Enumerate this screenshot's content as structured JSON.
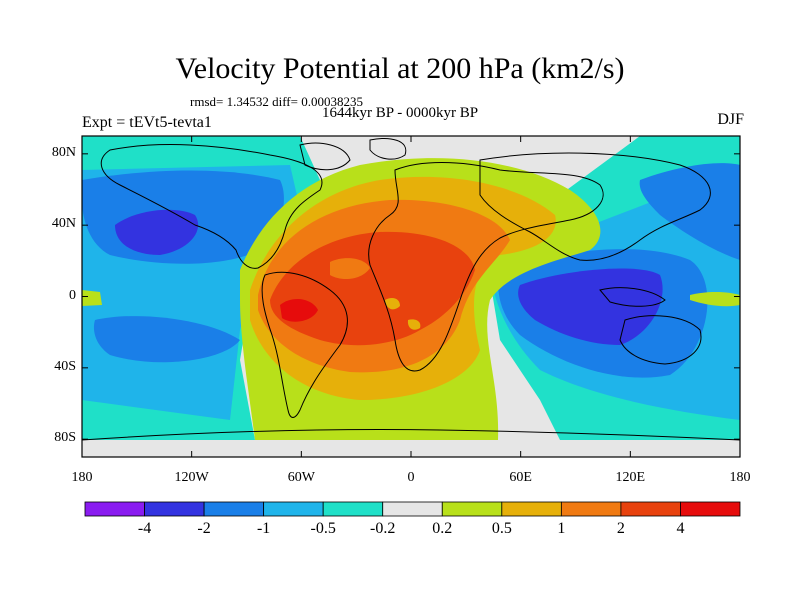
{
  "header": {
    "title": "Velocity Potential at 200 hPa (km2/s)",
    "stats": "rmsd= 1.34532 diff= 0.00038235",
    "period": "1644kyr BP - 0000kyr BP",
    "experiment": "Expt = tEVt5-tevta1",
    "season": "DJF"
  },
  "axes": {
    "lat_labels": [
      "80N",
      "40N",
      "0",
      "40S",
      "80S"
    ],
    "lat_values": [
      80,
      40,
      0,
      -40,
      -80
    ],
    "lon_labels": [
      "180",
      "120W",
      "60W",
      "0",
      "60E",
      "120E",
      "180"
    ],
    "lon_values": [
      -180,
      -120,
      -60,
      0,
      60,
      120,
      180
    ]
  },
  "colorbar": {
    "labels": [
      "-4",
      "-2",
      "-1",
      "-0.5",
      "-0.2",
      "0.2",
      "0.5",
      "1",
      "2",
      "4"
    ],
    "bins": [
      "<-4",
      "-4..-2",
      "-2..-1",
      "-1..-0.5",
      "-0.5..-0.2",
      "-0.2..0.2",
      "0.2..0.5",
      "0.5..1",
      "1..2",
      "2..4",
      ">4"
    ],
    "colors": [
      "#8a1cf0",
      "#3333e0",
      "#1a7fe8",
      "#1fb4ea",
      "#1fe0c8",
      "#e6e6e6",
      "#b8e01a",
      "#e6b00a",
      "#f07a12",
      "#e8420e",
      "#e60c0c"
    ]
  },
  "map_fields": {
    "note_free": "",
    "regions": [
      {
        "level": "-0.5..-0.2",
        "color": "#1fe0c8"
      },
      {
        "level": "-1..-0.5",
        "color": "#1fb4ea"
      },
      {
        "level": "-2..-1",
        "color": "#1a7fe8"
      },
      {
        "level": "-4..-2",
        "color": "#3333e0"
      },
      {
        "level": "0.2..0.5",
        "color": "#b8e01a"
      },
      {
        "level": "0.5..1",
        "color": "#e6b00a"
      },
      {
        "level": "1..2",
        "color": "#f07a12"
      },
      {
        "level": "2..4",
        "color": "#e8420e"
      }
    ]
  }
}
